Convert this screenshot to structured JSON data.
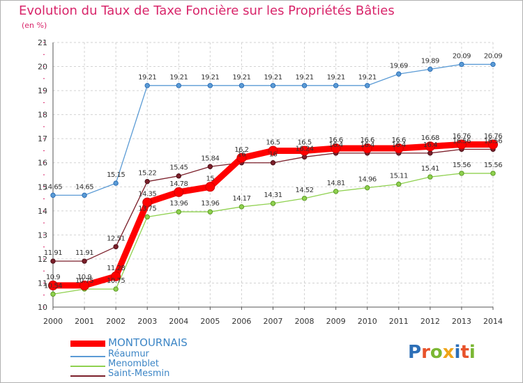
{
  "header": {
    "title": "Evolution du Taux de Taxe Foncière sur les Propriétés Bâties",
    "subtitle": "(en %)"
  },
  "logo": {
    "text": "Proxiti",
    "colors": [
      "#2d6fb7",
      "#e8532b",
      "#7ab733",
      "#f0a418",
      "#2d6fb7",
      "#e8532b",
      "#7ab733"
    ]
  },
  "chart_data": {
    "type": "line",
    "title": "Evolution du Taux de Taxe Foncière sur les Propriétés Bâties",
    "ylabel": "(en %)",
    "xlabel": "",
    "ylim": [
      10,
      21
    ],
    "yticks": [
      10,
      11,
      12,
      13,
      14,
      15,
      16,
      17,
      18,
      19,
      20,
      21
    ],
    "grid": true,
    "x": [
      "2000",
      "2001",
      "2002",
      "2003",
      "2004",
      "2005",
      "2006",
      "2007",
      "2008",
      "2009",
      "2010",
      "2011",
      "2012",
      "2013",
      "2014"
    ],
    "series": [
      {
        "name": "Réaumur",
        "color": "#5b9bd5",
        "values": [
          14.65,
          14.65,
          15.15,
          19.21,
          19.21,
          19.21,
          19.21,
          19.21,
          19.21,
          19.21,
          19.21,
          19.69,
          19.89,
          20.09,
          20.09
        ],
        "labels": [
          "14.65",
          "14.65",
          "15.15",
          "19.21",
          "19.21",
          "19.21",
          "19.21",
          "19.21",
          "19.21",
          "19.21",
          "19.21",
          "19.69",
          "19.89",
          "20.09",
          "20.09"
        ]
      },
      {
        "name": "Saint-Mesmin",
        "color": "#7b1f2a",
        "values": [
          11.91,
          11.91,
          12.51,
          15.22,
          15.45,
          15.84,
          16.0,
          16.0,
          16.24,
          16.4,
          16.4,
          16.4,
          16.4,
          16.56,
          16.56
        ],
        "labels": [
          "11.91",
          "11.91",
          "12.51",
          "15.22",
          "15.45",
          "15.84",
          "16",
          "16",
          "16.24",
          "16.4",
          "16.4",
          "16.4",
          "16.4",
          "16.56",
          "16.56"
        ]
      },
      {
        "name": "Menomblet",
        "color": "#8fd14f",
        "values": [
          10.54,
          10.75,
          10.75,
          13.75,
          13.96,
          13.96,
          14.17,
          14.31,
          14.52,
          14.81,
          14.96,
          15.11,
          15.41,
          15.56,
          15.56
        ],
        "labels": [
          "10.54",
          "10.75",
          "10.75",
          "13.75",
          "13.96",
          "13.96",
          "14.17",
          "14.31",
          "14.52",
          "14.81",
          "14.96",
          "15.11",
          "15.41",
          "15.56",
          "15.56"
        ]
      },
      {
        "name": "MONTOURNAIS",
        "color": "#ff0000",
        "values": [
          10.9,
          10.9,
          11.28,
          14.35,
          14.78,
          15.0,
          16.2,
          16.5,
          16.5,
          16.6,
          16.6,
          16.6,
          16.68,
          16.76,
          16.76
        ],
        "labels": [
          "10.9",
          "10.9",
          "11.28",
          "14.35",
          "14.78",
          "15",
          "16.2",
          "16.5",
          "16.5",
          "16.6",
          "16.6",
          "16.6",
          "16.68",
          "16.76",
          "16.76"
        ]
      }
    ],
    "legend": {
      "position": "bottom-left",
      "order": [
        "MONTOURNAIS",
        "Réaumur",
        "Menomblet",
        "Saint-Mesmin"
      ]
    }
  }
}
